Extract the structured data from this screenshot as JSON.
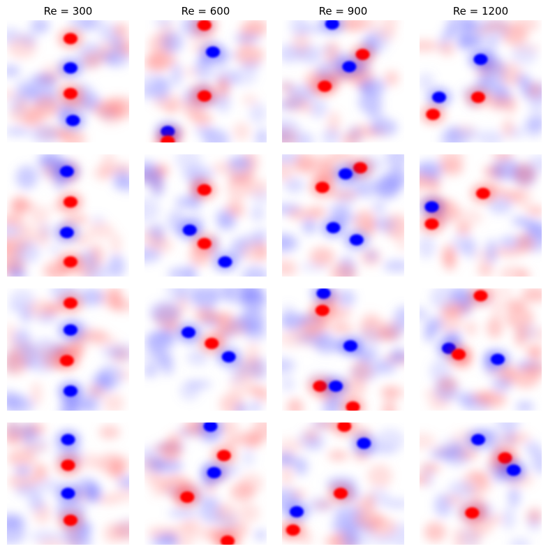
{
  "chart_data": {
    "type": "heatmap",
    "layout": "4 rows x 4 columns grid of vorticity fields",
    "colormap": "bwr (blue-white-red, diverging)",
    "axes_visible": false,
    "colorbar": false,
    "column_titles": [
      "Re = 300",
      "Re = 600",
      "Re = 900",
      "Re = 1200"
    ],
    "colors": {
      "positive": "#ff0000",
      "negative": "#0000ff",
      "zero": "#ffffff"
    },
    "panels": [
      {
        "row": 1,
        "col": 1,
        "title": "Re = 300",
        "vortices": [
          {
            "sign": "positive",
            "x": 0.52,
            "y": 0.15
          },
          {
            "sign": "negative",
            "x": 0.52,
            "y": 0.39
          },
          {
            "sign": "positive",
            "x": 0.52,
            "y": 0.6
          },
          {
            "sign": "negative",
            "x": 0.54,
            "y": 0.82
          }
        ]
      },
      {
        "row": 1,
        "col": 2,
        "title": "Re = 600",
        "vortices": [
          {
            "sign": "positive",
            "x": 0.49,
            "y": 0.04
          },
          {
            "sign": "negative",
            "x": 0.56,
            "y": 0.26
          },
          {
            "sign": "positive",
            "x": 0.49,
            "y": 0.62
          },
          {
            "sign": "negative",
            "x": 0.19,
            "y": 0.91
          },
          {
            "sign": "positive",
            "x": 0.19,
            "y": 0.99
          }
        ]
      },
      {
        "row": 1,
        "col": 3,
        "title": "Re = 900",
        "vortices": [
          {
            "sign": "negative",
            "x": 0.41,
            "y": 0.03
          },
          {
            "sign": "positive",
            "x": 0.66,
            "y": 0.28
          },
          {
            "sign": "negative",
            "x": 0.55,
            "y": 0.38
          },
          {
            "sign": "positive",
            "x": 0.35,
            "y": 0.54
          }
        ]
      },
      {
        "row": 1,
        "col": 4,
        "title": "Re = 1200",
        "vortices": [
          {
            "sign": "negative",
            "x": 0.5,
            "y": 0.32
          },
          {
            "sign": "negative",
            "x": 0.16,
            "y": 0.63
          },
          {
            "sign": "positive",
            "x": 0.48,
            "y": 0.63
          },
          {
            "sign": "positive",
            "x": 0.11,
            "y": 0.77
          }
        ]
      },
      {
        "row": 2,
        "col": 1,
        "title": "",
        "vortices": [
          {
            "sign": "negative",
            "x": 0.49,
            "y": 0.14
          },
          {
            "sign": "positive",
            "x": 0.52,
            "y": 0.39
          },
          {
            "sign": "negative",
            "x": 0.49,
            "y": 0.64
          },
          {
            "sign": "positive",
            "x": 0.52,
            "y": 0.88
          }
        ]
      },
      {
        "row": 2,
        "col": 2,
        "title": "",
        "vortices": [
          {
            "sign": "positive",
            "x": 0.49,
            "y": 0.29
          },
          {
            "sign": "negative",
            "x": 0.37,
            "y": 0.62
          },
          {
            "sign": "positive",
            "x": 0.49,
            "y": 0.73
          },
          {
            "sign": "negative",
            "x": 0.66,
            "y": 0.88
          }
        ]
      },
      {
        "row": 2,
        "col": 3,
        "title": "",
        "vortices": [
          {
            "sign": "positive",
            "x": 0.64,
            "y": 0.11
          },
          {
            "sign": "negative",
            "x": 0.52,
            "y": 0.16
          },
          {
            "sign": "positive",
            "x": 0.33,
            "y": 0.27
          },
          {
            "sign": "negative",
            "x": 0.42,
            "y": 0.6
          },
          {
            "sign": "negative",
            "x": 0.61,
            "y": 0.7
          }
        ]
      },
      {
        "row": 2,
        "col": 4,
        "title": "",
        "vortices": [
          {
            "sign": "positive",
            "x": 0.52,
            "y": 0.32
          },
          {
            "sign": "negative",
            "x": 0.1,
            "y": 0.43
          },
          {
            "sign": "positive",
            "x": 0.1,
            "y": 0.57
          }
        ]
      },
      {
        "row": 3,
        "col": 1,
        "title": "",
        "vortices": [
          {
            "sign": "positive",
            "x": 0.52,
            "y": 0.12
          },
          {
            "sign": "negative",
            "x": 0.52,
            "y": 0.34
          },
          {
            "sign": "positive",
            "x": 0.49,
            "y": 0.59
          },
          {
            "sign": "negative",
            "x": 0.52,
            "y": 0.84
          }
        ]
      },
      {
        "row": 3,
        "col": 2,
        "title": "",
        "vortices": [
          {
            "sign": "negative",
            "x": 0.36,
            "y": 0.36
          },
          {
            "sign": "positive",
            "x": 0.55,
            "y": 0.45
          },
          {
            "sign": "negative",
            "x": 0.69,
            "y": 0.56
          }
        ]
      },
      {
        "row": 3,
        "col": 3,
        "title": "",
        "vortices": [
          {
            "sign": "negative",
            "x": 0.34,
            "y": 0.04
          },
          {
            "sign": "positive",
            "x": 0.33,
            "y": 0.18
          },
          {
            "sign": "negative",
            "x": 0.56,
            "y": 0.47
          },
          {
            "sign": "positive",
            "x": 0.31,
            "y": 0.8
          },
          {
            "sign": "negative",
            "x": 0.44,
            "y": 0.8
          },
          {
            "sign": "positive",
            "x": 0.58,
            "y": 0.97
          }
        ]
      },
      {
        "row": 3,
        "col": 4,
        "title": "",
        "vortices": [
          {
            "sign": "positive",
            "x": 0.5,
            "y": 0.06
          },
          {
            "sign": "negative",
            "x": 0.24,
            "y": 0.49
          },
          {
            "sign": "positive",
            "x": 0.32,
            "y": 0.54
          },
          {
            "sign": "negative",
            "x": 0.64,
            "y": 0.58
          }
        ]
      },
      {
        "row": 4,
        "col": 1,
        "title": "",
        "vortices": [
          {
            "sign": "negative",
            "x": 0.5,
            "y": 0.14
          },
          {
            "sign": "positive",
            "x": 0.5,
            "y": 0.35
          },
          {
            "sign": "negative",
            "x": 0.5,
            "y": 0.58
          },
          {
            "sign": "positive",
            "x": 0.52,
            "y": 0.8
          }
        ]
      },
      {
        "row": 4,
        "col": 2,
        "title": "",
        "vortices": [
          {
            "sign": "positive",
            "x": 0.65,
            "y": 0.27
          },
          {
            "sign": "negative",
            "x": 0.57,
            "y": 0.41
          },
          {
            "sign": "positive",
            "x": 0.35,
            "y": 0.61
          },
          {
            "sign": "negative",
            "x": 0.54,
            "y": 0.03
          },
          {
            "sign": "positive",
            "x": 0.68,
            "y": 0.97
          }
        ]
      },
      {
        "row": 4,
        "col": 3,
        "title": "",
        "vortices": [
          {
            "sign": "positive",
            "x": 0.51,
            "y": 0.03
          },
          {
            "sign": "negative",
            "x": 0.67,
            "y": 0.17
          },
          {
            "sign": "positive",
            "x": 0.48,
            "y": 0.58
          },
          {
            "sign": "negative",
            "x": 0.12,
            "y": 0.73
          },
          {
            "sign": "positive",
            "x": 0.09,
            "y": 0.88
          }
        ]
      },
      {
        "row": 4,
        "col": 4,
        "title": "",
        "vortices": [
          {
            "sign": "negative",
            "x": 0.48,
            "y": 0.14
          },
          {
            "sign": "positive",
            "x": 0.7,
            "y": 0.29
          },
          {
            "sign": "negative",
            "x": 0.77,
            "y": 0.39
          },
          {
            "sign": "positive",
            "x": 0.43,
            "y": 0.74
          }
        ]
      }
    ]
  }
}
